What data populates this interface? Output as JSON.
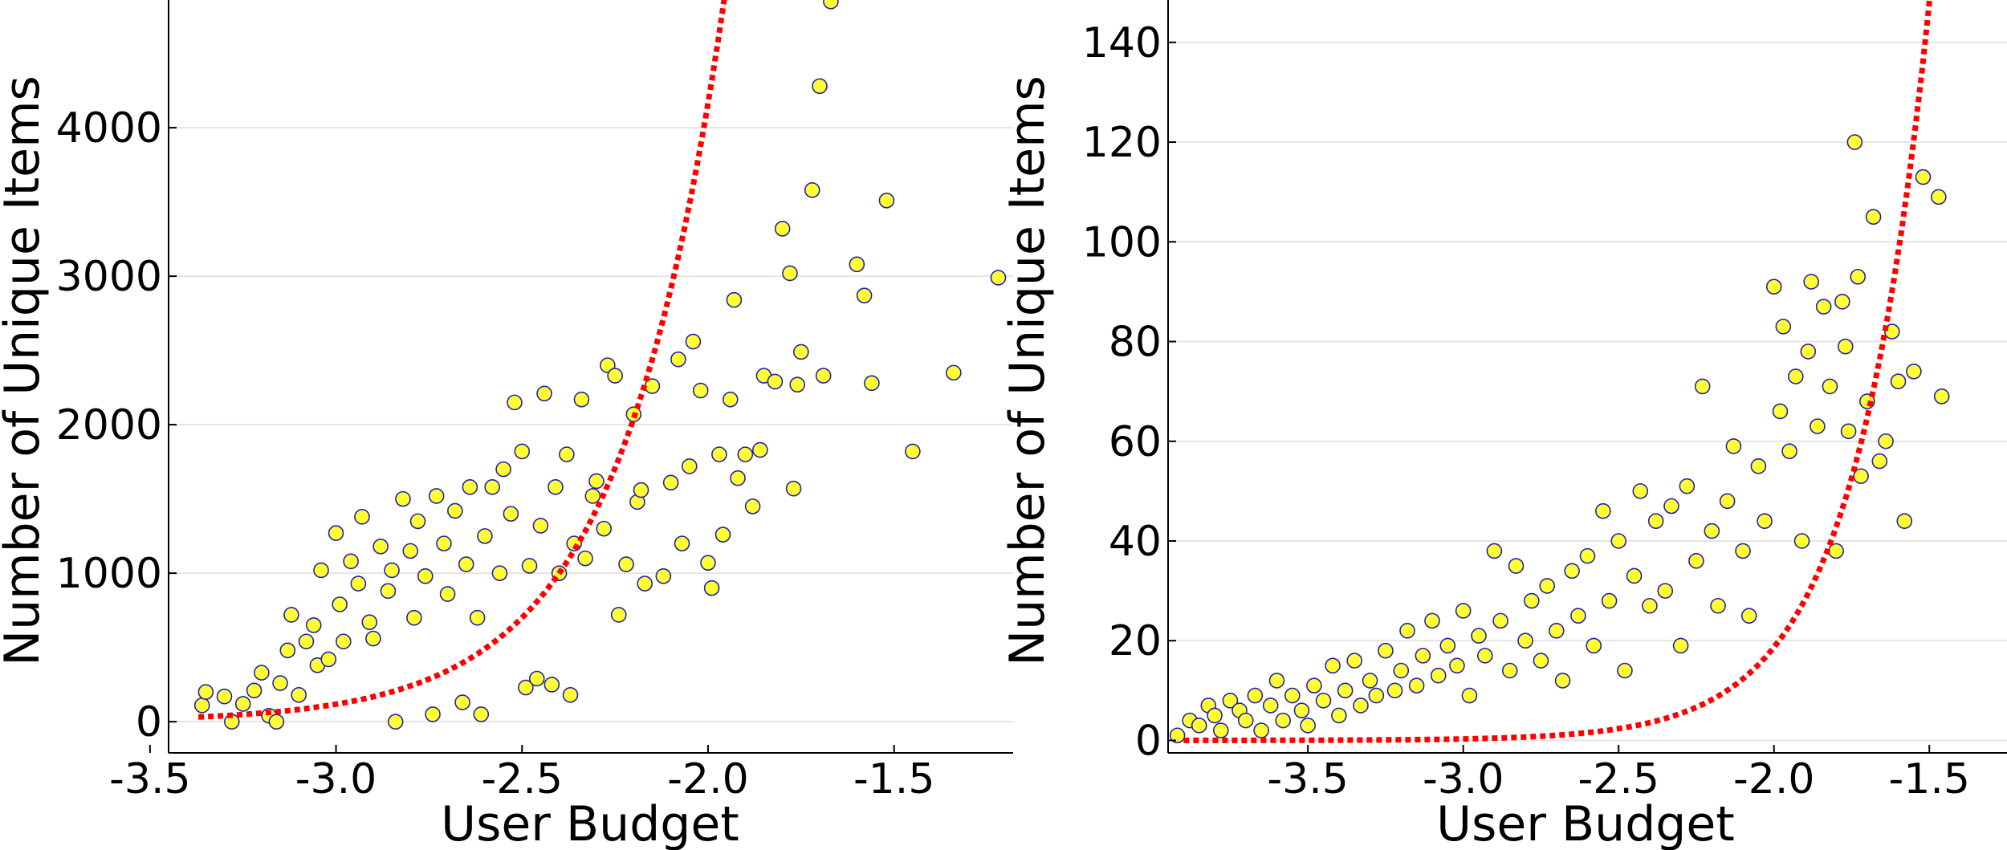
{
  "chart_data": [
    {
      "type": "scatter",
      "xlabel": "User Budget",
      "ylabel": "Number of Unique Items",
      "xlim": [
        -3.45,
        -1.18
      ],
      "ylim": [
        -210,
        4860
      ],
      "xticks": [
        -3.5,
        -3.0,
        -2.5,
        -2.0,
        -1.5
      ],
      "xtick_labels": [
        "-3.5",
        "-3.0",
        "-2.5",
        "-2.0",
        "-1.5"
      ],
      "yticks": [
        0,
        1000,
        2000,
        3000,
        4000
      ],
      "ytick_labels": [
        "0",
        "1000",
        "2000",
        "3000",
        "4000"
      ],
      "grid": "horizontal",
      "marker_fill": "#ffff33",
      "marker_edge": "#2222aa",
      "fit_color": "#ff0000",
      "fit": {
        "style": "dotted",
        "model": "exponential",
        "a": 5200000.0,
        "b": 3.565,
        "x_range": [
          -3.37,
          -1.22
        ]
      },
      "points": [
        [
          -3.36,
          110
        ],
        [
          -3.35,
          200
        ],
        [
          -3.3,
          170
        ],
        [
          -3.28,
          0
        ],
        [
          -3.25,
          120
        ],
        [
          -3.22,
          210
        ],
        [
          -3.2,
          330
        ],
        [
          -3.18,
          40
        ],
        [
          -3.16,
          0
        ],
        [
          -3.15,
          260
        ],
        [
          -3.13,
          480
        ],
        [
          -3.12,
          720
        ],
        [
          -3.1,
          180
        ],
        [
          -3.08,
          540
        ],
        [
          -3.06,
          650
        ],
        [
          -3.05,
          380
        ],
        [
          -3.04,
          1020
        ],
        [
          -3.02,
          420
        ],
        [
          -3.0,
          1270
        ],
        [
          -2.99,
          790
        ],
        [
          -2.98,
          540
        ],
        [
          -2.96,
          1080
        ],
        [
          -2.94,
          930
        ],
        [
          -2.93,
          1380
        ],
        [
          -2.91,
          670
        ],
        [
          -2.9,
          560
        ],
        [
          -2.88,
          1180
        ],
        [
          -2.86,
          880
        ],
        [
          -2.85,
          1020
        ],
        [
          -2.84,
          0
        ],
        [
          -2.82,
          1500
        ],
        [
          -2.8,
          1150
        ],
        [
          -2.79,
          700
        ],
        [
          -2.78,
          1350
        ],
        [
          -2.76,
          980
        ],
        [
          -2.74,
          50
        ],
        [
          -2.73,
          1520
        ],
        [
          -2.71,
          1200
        ],
        [
          -2.7,
          860
        ],
        [
          -2.68,
          1420
        ],
        [
          -2.66,
          130
        ],
        [
          -2.65,
          1060
        ],
        [
          -2.64,
          1580
        ],
        [
          -2.62,
          700
        ],
        [
          -2.61,
          50
        ],
        [
          -2.6,
          1250
        ],
        [
          -2.58,
          1580
        ],
        [
          -2.56,
          1000
        ],
        [
          -2.55,
          1700
        ],
        [
          -2.53,
          1400
        ],
        [
          -2.52,
          2150
        ],
        [
          -2.5,
          1820
        ],
        [
          -2.49,
          230
        ],
        [
          -2.48,
          1050
        ],
        [
          -2.46,
          290
        ],
        [
          -2.45,
          1320
        ],
        [
          -2.44,
          2210
        ],
        [
          -2.42,
          250
        ],
        [
          -2.41,
          1580
        ],
        [
          -2.4,
          1000
        ],
        [
          -2.38,
          1800
        ],
        [
          -2.37,
          180
        ],
        [
          -2.36,
          1200
        ],
        [
          -2.34,
          2170
        ],
        [
          -2.33,
          1100
        ],
        [
          -2.31,
          1520
        ],
        [
          -2.3,
          1620
        ],
        [
          -2.28,
          1300
        ],
        [
          -2.27,
          2400
        ],
        [
          -2.25,
          2330
        ],
        [
          -2.24,
          720
        ],
        [
          -2.22,
          1060
        ],
        [
          -2.2,
          2070
        ],
        [
          -2.19,
          1480
        ],
        [
          -2.18,
          1560
        ],
        [
          -2.17,
          930
        ],
        [
          -2.15,
          2260
        ],
        [
          -2.12,
          980
        ],
        [
          -2.1,
          1610
        ],
        [
          -2.08,
          2440
        ],
        [
          -2.07,
          1200
        ],
        [
          -2.05,
          1720
        ],
        [
          -2.04,
          2560
        ],
        [
          -2.02,
          2230
        ],
        [
          -2.0,
          1070
        ],
        [
          -1.99,
          900
        ],
        [
          -1.97,
          1800
        ],
        [
          -1.96,
          1260
        ],
        [
          -1.94,
          2170
        ],
        [
          -1.93,
          2840
        ],
        [
          -1.92,
          1640
        ],
        [
          -1.9,
          1800
        ],
        [
          -1.88,
          1450
        ],
        [
          -1.86,
          1830
        ],
        [
          -1.85,
          2330
        ],
        [
          -1.82,
          2290
        ],
        [
          -1.8,
          3320
        ],
        [
          -1.78,
          3020
        ],
        [
          -1.77,
          1570
        ],
        [
          -1.76,
          2270
        ],
        [
          -1.75,
          2490
        ],
        [
          -1.72,
          3580
        ],
        [
          -1.7,
          4280
        ],
        [
          -1.69,
          2330
        ],
        [
          -1.67,
          4850
        ],
        [
          -1.6,
          3080
        ],
        [
          -1.58,
          2870
        ],
        [
          -1.56,
          2280
        ],
        [
          -1.52,
          3510
        ],
        [
          -1.45,
          1820
        ],
        [
          -1.34,
          2350
        ],
        [
          -1.22,
          2990
        ]
      ]
    },
    {
      "type": "scatter",
      "xlabel": "User Budget",
      "ylabel": "Number of Unique Items",
      "xlim": [
        -3.95,
        -1.25
      ],
      "ylim": [
        -2.5,
        148.5
      ],
      "xticks": [
        -3.5,
        -3.0,
        -2.5,
        -2.0,
        -1.5
      ],
      "xtick_labels": [
        "-3.5",
        "-3.0",
        "-2.5",
        "-2.0",
        "-1.5"
      ],
      "yticks": [
        0,
        20,
        40,
        60,
        80,
        100,
        120,
        140
      ],
      "ytick_labels": [
        "0",
        "20",
        "40",
        "60",
        "80",
        "100",
        "120",
        "140"
      ],
      "grid": "horizontal",
      "marker_fill": "#ffff33",
      "marker_edge": "#2222aa",
      "fit_color": "#ff0000",
      "fit": {
        "style": "dotted",
        "model": "exponential",
        "a": 73690,
        "b": 4.14,
        "x_range": [
          -3.9,
          -1.26
        ]
      },
      "points": [
        [
          -3.92,
          1
        ],
        [
          -3.88,
          4
        ],
        [
          -3.85,
          3
        ],
        [
          -3.82,
          7
        ],
        [
          -3.8,
          5
        ],
        [
          -3.78,
          2
        ],
        [
          -3.75,
          8
        ],
        [
          -3.72,
          6
        ],
        [
          -3.7,
          4
        ],
        [
          -3.67,
          9
        ],
        [
          -3.65,
          2
        ],
        [
          -3.62,
          7
        ],
        [
          -3.6,
          12
        ],
        [
          -3.58,
          4
        ],
        [
          -3.55,
          9
        ],
        [
          -3.52,
          6
        ],
        [
          -3.5,
          3
        ],
        [
          -3.48,
          11
        ],
        [
          -3.45,
          8
        ],
        [
          -3.42,
          15
        ],
        [
          -3.4,
          5
        ],
        [
          -3.38,
          10
        ],
        [
          -3.35,
          16
        ],
        [
          -3.33,
          7
        ],
        [
          -3.3,
          12
        ],
        [
          -3.28,
          9
        ],
        [
          -3.25,
          18
        ],
        [
          -3.22,
          10
        ],
        [
          -3.2,
          14
        ],
        [
          -3.18,
          22
        ],
        [
          -3.15,
          11
        ],
        [
          -3.13,
          17
        ],
        [
          -3.1,
          24
        ],
        [
          -3.08,
          13
        ],
        [
          -3.05,
          19
        ],
        [
          -3.02,
          15
        ],
        [
          -3.0,
          26
        ],
        [
          -2.98,
          9
        ],
        [
          -2.95,
          21
        ],
        [
          -2.93,
          17
        ],
        [
          -2.9,
          38
        ],
        [
          -2.88,
          24
        ],
        [
          -2.85,
          14
        ],
        [
          -2.83,
          35
        ],
        [
          -2.8,
          20
        ],
        [
          -2.78,
          28
        ],
        [
          -2.75,
          16
        ],
        [
          -2.73,
          31
        ],
        [
          -2.7,
          22
        ],
        [
          -2.68,
          12
        ],
        [
          -2.65,
          34
        ],
        [
          -2.63,
          25
        ],
        [
          -2.6,
          37
        ],
        [
          -2.58,
          19
        ],
        [
          -2.55,
          46
        ],
        [
          -2.53,
          28
        ],
        [
          -2.5,
          40
        ],
        [
          -2.48,
          14
        ],
        [
          -2.45,
          33
        ],
        [
          -2.43,
          50
        ],
        [
          -2.4,
          27
        ],
        [
          -2.38,
          44
        ],
        [
          -2.35,
          30
        ],
        [
          -2.33,
          47
        ],
        [
          -2.3,
          19
        ],
        [
          -2.28,
          51
        ],
        [
          -2.25,
          36
        ],
        [
          -2.23,
          71
        ],
        [
          -2.2,
          42
        ],
        [
          -2.18,
          27
        ],
        [
          -2.15,
          48
        ],
        [
          -2.13,
          59
        ],
        [
          -2.1,
          38
        ],
        [
          -2.08,
          25
        ],
        [
          -2.05,
          55
        ],
        [
          -2.03,
          44
        ],
        [
          -2.0,
          91
        ],
        [
          -1.98,
          66
        ],
        [
          -1.97,
          83
        ],
        [
          -1.95,
          58
        ],
        [
          -1.93,
          73
        ],
        [
          -1.91,
          40
        ],
        [
          -1.89,
          78
        ],
        [
          -1.88,
          92
        ],
        [
          -1.86,
          63
        ],
        [
          -1.84,
          87
        ],
        [
          -1.82,
          71
        ],
        [
          -1.8,
          38
        ],
        [
          -1.78,
          88
        ],
        [
          -1.77,
          79
        ],
        [
          -1.76,
          62
        ],
        [
          -1.74,
          120
        ],
        [
          -1.73,
          93
        ],
        [
          -1.72,
          53
        ],
        [
          -1.7,
          68
        ],
        [
          -1.68,
          105
        ],
        [
          -1.66,
          56
        ],
        [
          -1.64,
          60
        ],
        [
          -1.62,
          82
        ],
        [
          -1.6,
          72
        ],
        [
          -1.58,
          44
        ],
        [
          -1.55,
          74
        ],
        [
          -1.52,
          113
        ],
        [
          -1.47,
          109
        ],
        [
          -1.46,
          69
        ]
      ]
    }
  ]
}
